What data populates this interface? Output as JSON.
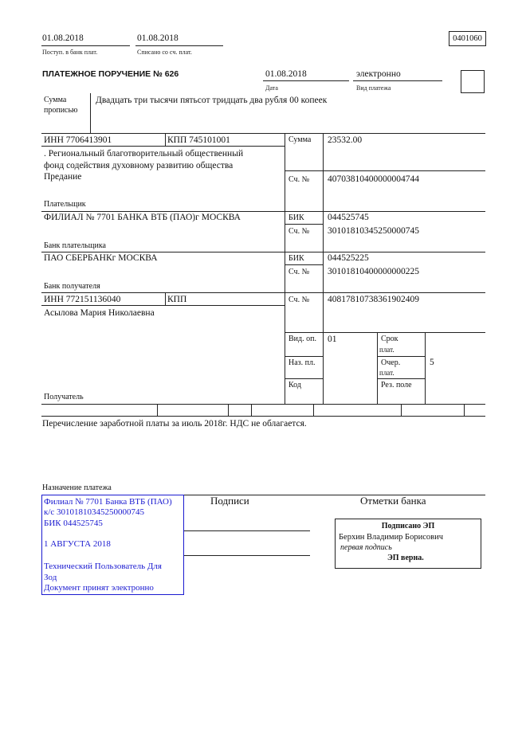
{
  "header": {
    "received_date": "01.08.2018",
    "received_label": "Поступ. в банк плат.",
    "debited_date": "01.08.2018",
    "debited_label": "Списано со сч. плат.",
    "form_code": "0401060",
    "title": "ПЛАТЕЖНОЕ ПОРУЧЕНИЕ № 626",
    "date": "01.08.2018",
    "date_label": "Дата",
    "payment_type": "электронно",
    "payment_type_label": "Вид платежа"
  },
  "amount_words": {
    "label_line1": "Сумма",
    "label_line2": "прописью",
    "value": "Двадцать три тысячи пятьсот тридцать два рубля 00 копеек"
  },
  "payer": {
    "inn": "ИНН 7706413901",
    "kpp": "КПП 745101001",
    "name_lines": [
      ". Региональный благотворительный общественный",
      "фонд содействия духовному развитию общества",
      "Предание"
    ],
    "label": "Плательщик",
    "amount_label": "Сумма",
    "amount": "23532.00",
    "account_label": "Сч. №",
    "account": "40703810400000004744"
  },
  "payer_bank": {
    "name": "ФИЛИАЛ № 7701 БАНКА ВТБ (ПАО)г МОСКВА",
    "label": "Банк плательщика",
    "bik_label": "БИК",
    "bik": "044525745",
    "account_label": "Сч. №",
    "account": "30101810345250000745"
  },
  "payee_bank": {
    "name": "ПАО СБЕРБАНКг МОСКВА",
    "label": "Банк получателя",
    "bik_label": "БИК",
    "bik": "044525225",
    "account_label": "Сч. №",
    "account": "30101810400000000225"
  },
  "payee": {
    "inn": "ИНН 772151136040",
    "kpp": "КПП",
    "name": "Асылова Мария Николаевна",
    "label": "Получатель",
    "account_label": "Сч. №",
    "account": "40817810738361902409"
  },
  "details": {
    "op_type_label": "Вид. оп.",
    "op_type": "01",
    "purpose_code_label": "Наз. пл.",
    "code_label": "Код",
    "term_label_1": "Срок",
    "term_label_2": "плат.",
    "priority_label_1": "Очер.",
    "priority_label_2": "плат.",
    "priority": "5",
    "reserve_label": "Рез. поле"
  },
  "purpose": {
    "text": "Перечисление заработной платы за июль 2018г. НДС не облагается.",
    "label": "Назначение платежа"
  },
  "bank_stamp": {
    "lines": [
      "Филиал № 7701 Банка ВТБ (ПАО)",
      "к/с 30101810345250000745",
      "БИК 044525745",
      "1 АВГУСТА 2018",
      "Технический Пользователь Для",
      "Зод",
      "Документ принят электронно"
    ],
    "color": "#1a1ad0"
  },
  "signatures": {
    "label": "Подписи"
  },
  "bank_marks": {
    "label": "Отметки банка",
    "signed": "Подписано ЭП",
    "signer": "Берхин Владимир Борисович",
    "signature_role": "первая подпись",
    "verified": "ЭП верна."
  }
}
